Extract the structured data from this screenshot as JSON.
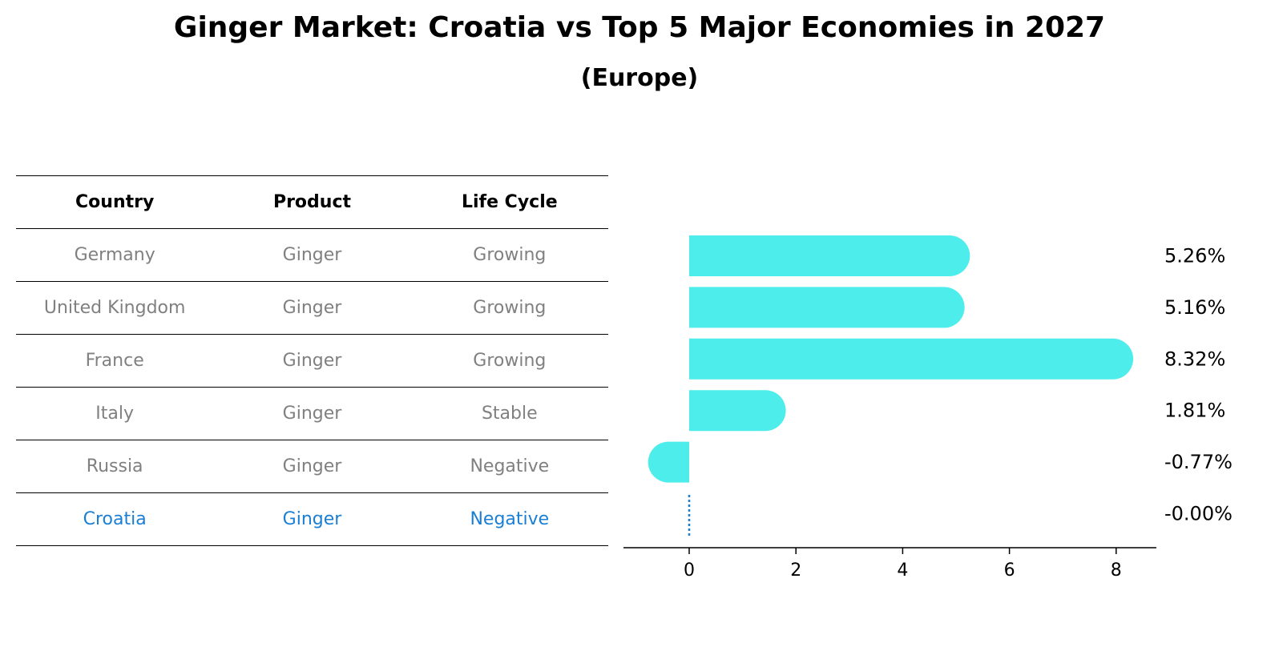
{
  "title": "Ginger Market: Croatia vs Top 5 Major Economies in 2027",
  "subtitle": "(Europe)",
  "table": {
    "headers": [
      "Country",
      "Product",
      "Life Cycle"
    ],
    "rows": [
      {
        "country": "Germany",
        "product": "Ginger",
        "life_cycle": "Growing"
      },
      {
        "country": "United Kingdom",
        "product": "Ginger",
        "life_cycle": "Growing"
      },
      {
        "country": "France",
        "product": "Ginger",
        "life_cycle": "Growing"
      },
      {
        "country": "Italy",
        "product": "Ginger",
        "life_cycle": "Stable"
      },
      {
        "country": "Russia",
        "product": "Ginger",
        "life_cycle": "Negative"
      },
      {
        "country": "Croatia",
        "product": "Ginger",
        "life_cycle": "Negative"
      }
    ]
  },
  "colors": {
    "bar": "#4dedeb",
    "highlight": "#1a7fd4",
    "muted": "#808080"
  },
  "chart_data": {
    "type": "bar",
    "orientation": "horizontal",
    "categories": [
      "Germany",
      "United Kingdom",
      "France",
      "Italy",
      "Russia",
      "Croatia"
    ],
    "values": [
      5.26,
      5.16,
      8.32,
      1.81,
      -0.77,
      -0.0
    ],
    "value_labels": [
      "5.26%",
      "5.16%",
      "8.32%",
      "1.81%",
      "-0.77%",
      "-0.00%"
    ],
    "xticks": [
      0,
      2,
      4,
      6,
      8
    ],
    "xlim": [
      -1.22,
      8.76
    ],
    "grid": false
  }
}
